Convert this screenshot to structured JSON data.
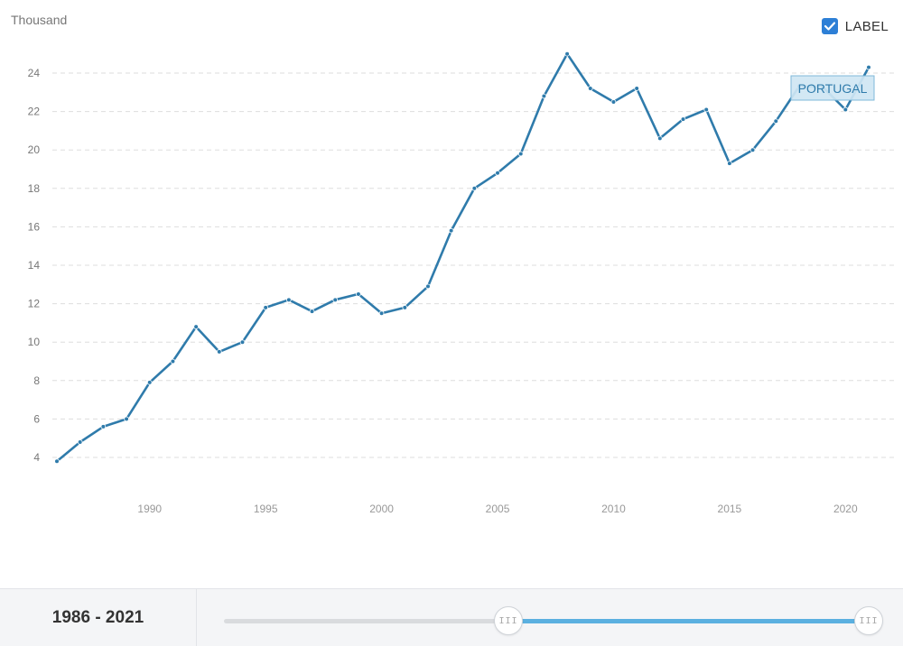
{
  "chart_data": {
    "type": "line",
    "unit_label": "Thousand",
    "x": [
      1986,
      1987,
      1988,
      1989,
      1990,
      1991,
      1992,
      1993,
      1994,
      1995,
      1996,
      1997,
      1998,
      1999,
      2000,
      2001,
      2002,
      2003,
      2004,
      2005,
      2006,
      2007,
      2008,
      2009,
      2010,
      2011,
      2012,
      2013,
      2014,
      2015,
      2016,
      2017,
      2018,
      2019,
      2020,
      2021
    ],
    "series": [
      {
        "name": "PORTUGAL",
        "color": "#2f7bab",
        "values": [
          3.8,
          4.8,
          5.6,
          6.0,
          7.9,
          9.0,
          10.8,
          9.5,
          10.0,
          11.8,
          12.2,
          11.6,
          12.2,
          12.5,
          11.5,
          11.8,
          12.9,
          15.8,
          18.0,
          18.8,
          19.8,
          22.8,
          25.0,
          23.2,
          22.5,
          23.2,
          20.6,
          21.6,
          22.1,
          19.3,
          20.0,
          21.5,
          23.3,
          23.3,
          22.1,
          24.3
        ]
      }
    ],
    "y_ticks": [
      "4",
      "6",
      "8",
      "10",
      "12",
      "14",
      "16",
      "18",
      "20",
      "22",
      "24"
    ],
    "x_ticks": [
      "1990",
      "1995",
      "2000",
      "2005",
      "2010",
      "2015",
      "2020"
    ],
    "ylim": [
      3,
      25.5
    ],
    "grid": true,
    "grid_style": "dashed"
  },
  "controls": {
    "label_toggle": {
      "text": "LABEL",
      "checked": true,
      "color": "#2d7fd6"
    },
    "series_tag": "PORTUGAL"
  },
  "footer": {
    "range_label": "1986 - 2021",
    "slider": {
      "start_fraction": 0.44,
      "end_fraction": 1.0,
      "fill_color": "#5bb0e0"
    }
  }
}
